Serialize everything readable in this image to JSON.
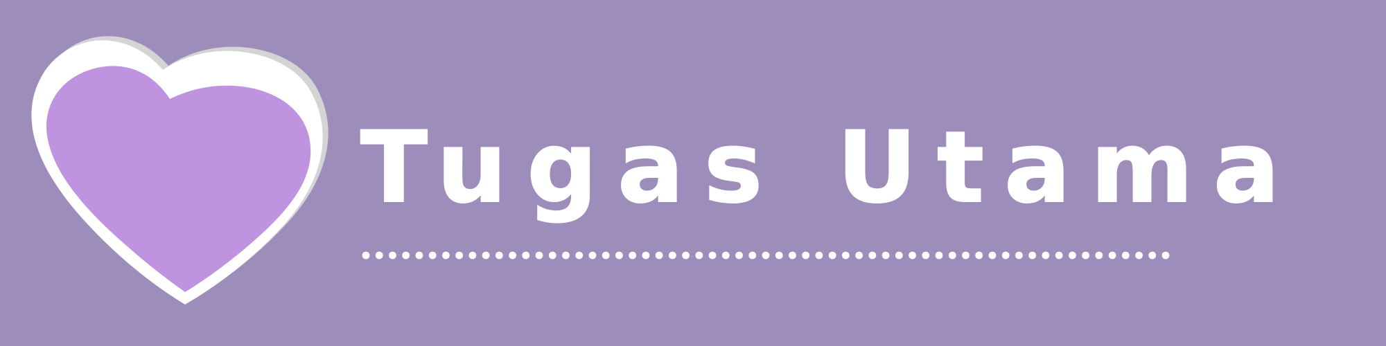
{
  "banner": {
    "title": "Tugas Utama",
    "colors": {
      "background": "#9c8dba",
      "heart_fill": "#bf93df",
      "heart_outline": "#ffffff",
      "heart_shadow": "#d4d4d4",
      "text": "#ffffff",
      "dots": "#ffffff"
    },
    "icons": {
      "heart": "heart-icon",
      "divider": "dotted-divider"
    }
  }
}
